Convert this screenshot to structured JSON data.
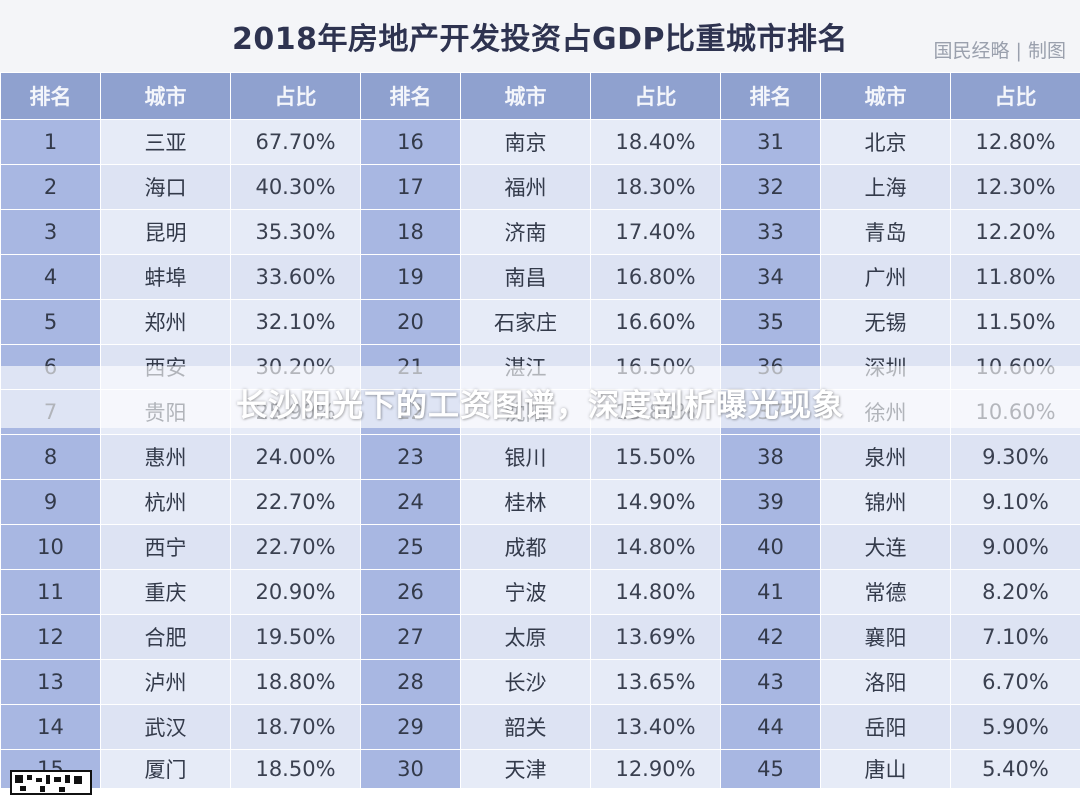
{
  "title": "2018年房地产开发投资占GDP比重城市排名",
  "credit": "国民经略 | 制图",
  "overlay_caption": "长沙阳光下的工资图谱，深度剖析曝光现象",
  "headers": [
    "排名",
    "城市",
    "占比",
    "排名",
    "城市",
    "占比",
    "排名",
    "城市",
    "占比"
  ],
  "rows": [
    [
      {
        "rank": "1",
        "city": "三亚",
        "pct": "67.70%"
      },
      {
        "rank": "16",
        "city": "南京",
        "pct": "18.40%"
      },
      {
        "rank": "31",
        "city": "北京",
        "pct": "12.80%"
      }
    ],
    [
      {
        "rank": "2",
        "city": "海口",
        "pct": "40.30%"
      },
      {
        "rank": "17",
        "city": "福州",
        "pct": "18.30%"
      },
      {
        "rank": "32",
        "city": "上海",
        "pct": "12.30%"
      }
    ],
    [
      {
        "rank": "3",
        "city": "昆明",
        "pct": "35.30%"
      },
      {
        "rank": "18",
        "city": "济南",
        "pct": "17.40%"
      },
      {
        "rank": "33",
        "city": "青岛",
        "pct": "12.20%"
      }
    ],
    [
      {
        "rank": "4",
        "city": "蚌埠",
        "pct": "33.60%"
      },
      {
        "rank": "19",
        "city": "南昌",
        "pct": "16.80%"
      },
      {
        "rank": "34",
        "city": "广州",
        "pct": "11.80%"
      }
    ],
    [
      {
        "rank": "5",
        "city": "郑州",
        "pct": "32.10%"
      },
      {
        "rank": "20",
        "city": "石家庄",
        "pct": "16.60%"
      },
      {
        "rank": "35",
        "city": "无锡",
        "pct": "11.50%"
      }
    ],
    [
      {
        "rank": "6",
        "city": "西安",
        "pct": "30.20%"
      },
      {
        "rank": "21",
        "city": "湛江",
        "pct": "16.50%"
      },
      {
        "rank": "36",
        "city": "深圳",
        "pct": "10.60%"
      }
    ],
    [
      {
        "rank": "7",
        "city": "贵阳",
        "pct": "25.90%"
      },
      {
        "rank": "22",
        "city": "沈阳",
        "pct": "15.80%"
      },
      {
        "rank": "37",
        "city": "徐州",
        "pct": "10.60%"
      }
    ],
    [
      {
        "rank": "8",
        "city": "惠州",
        "pct": "24.00%"
      },
      {
        "rank": "23",
        "city": "银川",
        "pct": "15.50%"
      },
      {
        "rank": "38",
        "city": "泉州",
        "pct": "9.30%"
      }
    ],
    [
      {
        "rank": "9",
        "city": "杭州",
        "pct": "22.70%"
      },
      {
        "rank": "24",
        "city": "桂林",
        "pct": "14.90%"
      },
      {
        "rank": "39",
        "city": "锦州",
        "pct": "9.10%"
      }
    ],
    [
      {
        "rank": "10",
        "city": "西宁",
        "pct": "22.70%"
      },
      {
        "rank": "25",
        "city": "成都",
        "pct": "14.80%"
      },
      {
        "rank": "40",
        "city": "大连",
        "pct": "9.00%"
      }
    ],
    [
      {
        "rank": "11",
        "city": "重庆",
        "pct": "20.90%"
      },
      {
        "rank": "26",
        "city": "宁波",
        "pct": "14.80%"
      },
      {
        "rank": "41",
        "city": "常德",
        "pct": "8.20%"
      }
    ],
    [
      {
        "rank": "12",
        "city": "合肥",
        "pct": "19.50%"
      },
      {
        "rank": "27",
        "city": "太原",
        "pct": "13.69%"
      },
      {
        "rank": "42",
        "city": "襄阳",
        "pct": "7.10%"
      }
    ],
    [
      {
        "rank": "13",
        "city": "泸州",
        "pct": "18.80%"
      },
      {
        "rank": "28",
        "city": "长沙",
        "pct": "13.65%"
      },
      {
        "rank": "43",
        "city": "洛阳",
        "pct": "6.70%"
      }
    ],
    [
      {
        "rank": "14",
        "city": "武汉",
        "pct": "18.70%"
      },
      {
        "rank": "29",
        "city": "韶关",
        "pct": "13.40%"
      },
      {
        "rank": "44",
        "city": "岳阳",
        "pct": "5.90%"
      }
    ],
    [
      {
        "rank": "15",
        "city": "厦门",
        "pct": "18.50%"
      },
      {
        "rank": "30",
        "city": "天津",
        "pct": "12.90%"
      },
      {
        "rank": "45",
        "city": "唐山",
        "pct": "5.40%"
      }
    ]
  ],
  "colors": {
    "header_bg": "#8fa1cf",
    "rank_bg": "#a8b7e2",
    "cell_bg": "#e6ebf7",
    "title_color": "#2e3350"
  },
  "icons": {
    "qr": "qr-code-icon"
  }
}
